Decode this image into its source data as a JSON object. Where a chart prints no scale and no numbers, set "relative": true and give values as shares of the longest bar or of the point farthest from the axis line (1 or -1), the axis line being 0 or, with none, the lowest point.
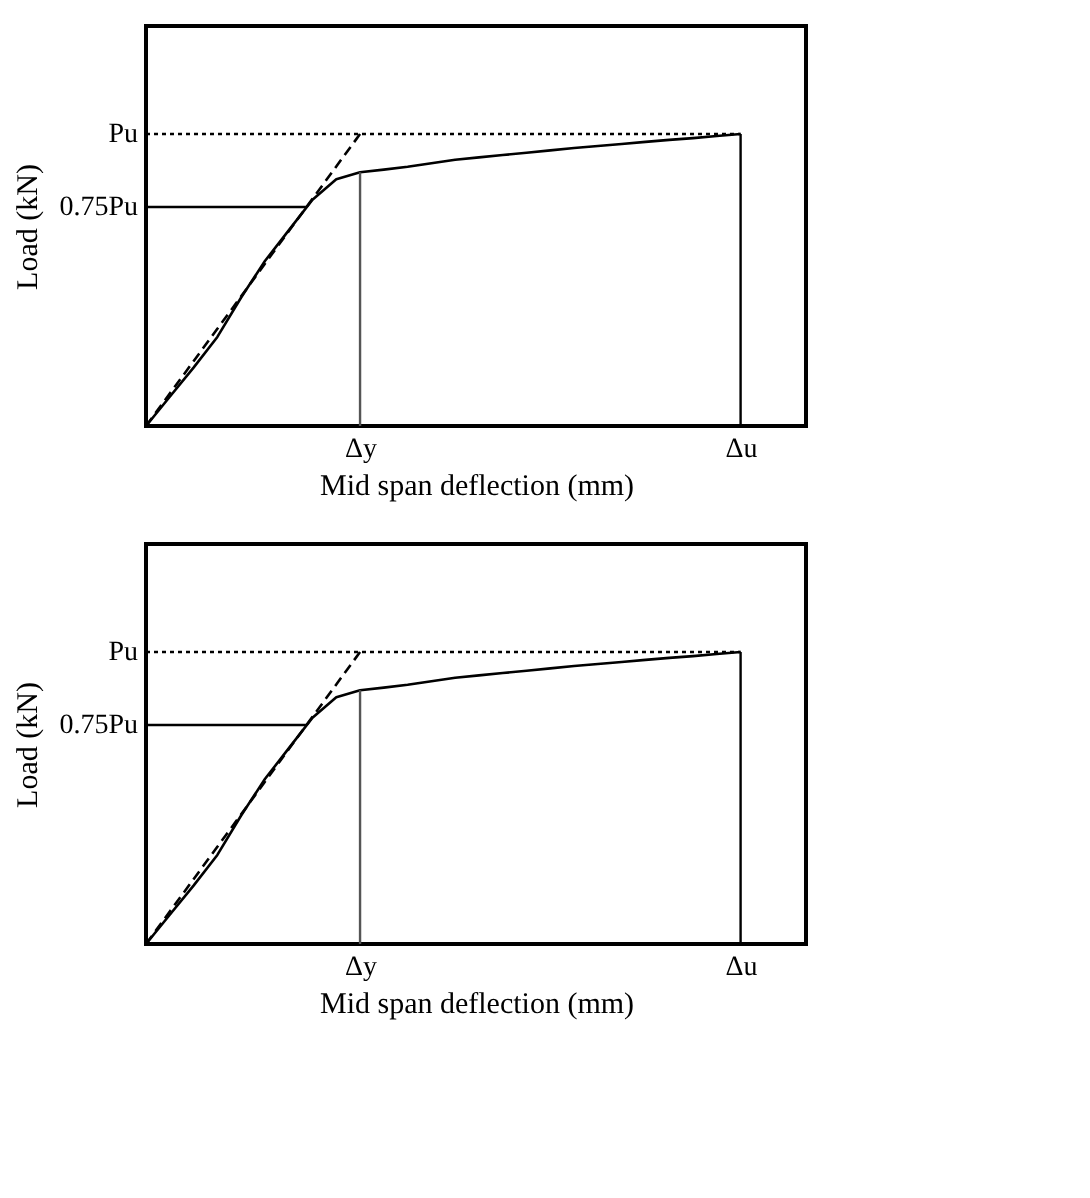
{
  "chart_data": [
    {
      "type": "line",
      "relative": true,
      "xlabel": "Mid span deflection (mm)",
      "ylabel": "Load (kN)",
      "grid": false,
      "marker": "none",
      "categories": [
        null,
        null,
        null,
        null,
        null,
        null,
        null,
        null,
        null,
        "Δy",
        null,
        null,
        null,
        null,
        null,
        null,
        null,
        null,
        null,
        null,
        null,
        null,
        null,
        null,
        null,
        "Δu"
      ],
      "series": [
        {
          "color": "#000000",
          "line_style": "solid",
          "values": [
            0,
            0.1,
            0.2,
            0.305,
            0.44,
            0.565,
            0.67,
            0.775,
            0.845,
            0.869,
            0.878,
            0.888,
            0.9,
            0.912,
            0.92,
            0.928,
            0.936,
            0.944,
            0.952,
            0.959,
            0.966,
            0.973,
            0.98,
            0.986,
            0.993,
            1
          ]
        },
        {
          "color": "#000000",
          "line_style": "dashed",
          "values": [
            0,
            0.111,
            0.222,
            0.333,
            0.444,
            0.556,
            0.667,
            0.778,
            0.889,
            1,
            null,
            null,
            null,
            null,
            null,
            null,
            null,
            null,
            null,
            null,
            null,
            null,
            null,
            null,
            null,
            null
          ]
        }
      ],
      "ref_lines": [
        {
          "axis": "y",
          "value": 1,
          "label": "Pu",
          "color": "#000000",
          "line_style": "dotted"
        },
        {
          "axis": "y",
          "value": 0.75,
          "label": "0.75Pu",
          "color": "#000000",
          "line_style": "solid"
        },
        {
          "axis": "x",
          "value": "Δy",
          "color": "#555555",
          "line_style": "solid"
        },
        {
          "axis": "x",
          "value": "Δu",
          "color": "#000000",
          "line_style": "solid"
        }
      ]
    },
    {
      "type": "line",
      "relative": true,
      "xlabel": "Mid span deflection (mm)",
      "ylabel": "Load (kN)",
      "grid": false,
      "marker": "none",
      "categories": [
        null,
        null,
        null,
        null,
        null,
        null,
        null,
        null,
        null,
        "Δy",
        null,
        null,
        null,
        null,
        null,
        null,
        null,
        null,
        null,
        null,
        null,
        null,
        null,
        null,
        null,
        "Δu"
      ],
      "series": [
        {
          "color": "#000000",
          "line_style": "solid",
          "values": [
            0,
            0.1,
            0.2,
            0.305,
            0.44,
            0.565,
            0.67,
            0.775,
            0.845,
            0.869,
            0.878,
            0.888,
            0.9,
            0.912,
            0.92,
            0.928,
            0.936,
            0.944,
            0.952,
            0.959,
            0.966,
            0.973,
            0.98,
            0.986,
            0.993,
            1
          ]
        },
        {
          "color": "#000000",
          "line_style": "dashed",
          "values": [
            0,
            0.111,
            0.222,
            0.333,
            0.444,
            0.556,
            0.667,
            0.778,
            0.889,
            1,
            null,
            null,
            null,
            null,
            null,
            null,
            null,
            null,
            null,
            null,
            null,
            null,
            null,
            null,
            null,
            null
          ]
        }
      ],
      "ref_lines": [
        {
          "axis": "y",
          "value": 1,
          "label": "Pu",
          "color": "#000000",
          "line_style": "dotted"
        },
        {
          "axis": "y",
          "value": 0.75,
          "label": "0.75Pu",
          "color": "#000000",
          "line_style": "solid"
        },
        {
          "axis": "x",
          "value": "Δy",
          "color": "#555555",
          "line_style": "solid"
        },
        {
          "axis": "x",
          "value": "Δu",
          "color": "#000000",
          "line_style": "solid"
        }
      ]
    }
  ]
}
